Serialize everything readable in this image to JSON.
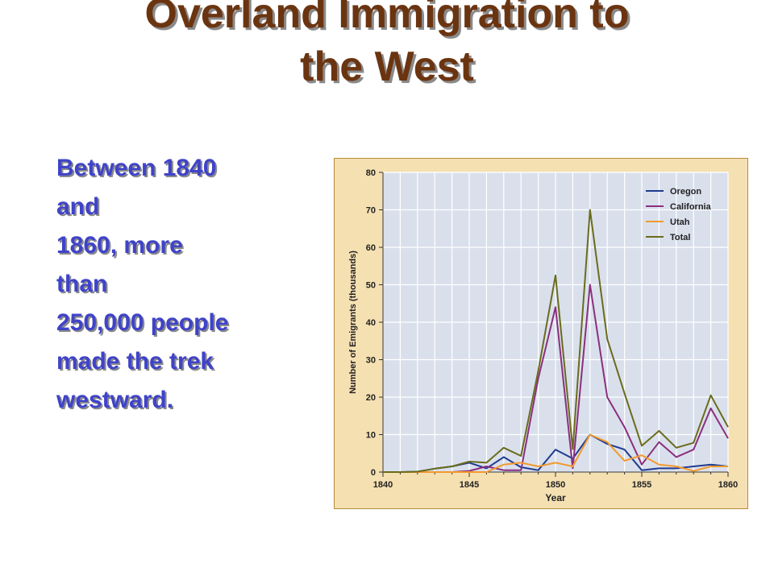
{
  "title": {
    "line1": "Overland Immigration to",
    "line2": "the West"
  },
  "body": {
    "lines": [
      "Between 1840",
      "and",
      "1860, more",
      "than",
      "250,000 people",
      "made the trek",
      "westward."
    ]
  },
  "colors": {
    "title": "#6b3410",
    "body_text": "#3f43c9",
    "panel_background": "#f5e0b2",
    "plot_background": "#d9e0ec",
    "oregon": "#1f3b8f",
    "california": "#8b2f7e",
    "utah": "#f39a2e",
    "total": "#6b6b1c"
  },
  "chart_data": {
    "type": "line",
    "xlabel": "Year",
    "ylabel": "Number of Emigrants (thousands)",
    "xlim": [
      1840,
      1860
    ],
    "ylim": [
      0,
      80
    ],
    "x_ticks": [
      1840,
      1845,
      1850,
      1855,
      1860
    ],
    "y_ticks": [
      0,
      10,
      20,
      30,
      40,
      50,
      60,
      70,
      80
    ],
    "grid": true,
    "legend_position": "top-right",
    "x": [
      1840,
      1841,
      1842,
      1843,
      1844,
      1845,
      1846,
      1847,
      1848,
      1849,
      1850,
      1851,
      1852,
      1853,
      1854,
      1855,
      1856,
      1857,
      1858,
      1859,
      1860
    ],
    "series": [
      {
        "name": "Oregon",
        "color": "#1f3b8f",
        "values": [
          0,
          0,
          0.1,
          0.9,
          1.5,
          2.5,
          1.0,
          4.0,
          1.3,
          0.5,
          6.0,
          3.6,
          10.0,
          7.5,
          6.0,
          0.5,
          1.0,
          1.0,
          1.5,
          2.0,
          1.5
        ]
      },
      {
        "name": "California",
        "color": "#8b2f7e",
        "values": [
          0,
          0,
          0,
          0,
          0,
          0.3,
          1.5,
          0.5,
          0.5,
          25.0,
          44.0,
          1.0,
          50.0,
          20.0,
          12.0,
          2.0,
          8.0,
          4.0,
          6.0,
          17.0,
          9.0
        ]
      },
      {
        "name": "Utah",
        "color": "#f39a2e",
        "values": [
          0,
          0,
          0,
          0,
          0,
          0,
          0,
          2.0,
          2.5,
          1.5,
          2.5,
          1.5,
          10.0,
          8.0,
          3.0,
          4.5,
          2.0,
          1.5,
          0.3,
          1.5,
          1.5
        ]
      },
      {
        "name": "Total",
        "color": "#6b6b1c",
        "values": [
          0,
          0,
          0.1,
          0.9,
          1.5,
          2.8,
          2.5,
          6.5,
          4.3,
          27.0,
          52.5,
          6.1,
          70.0,
          35.5,
          21.0,
          7.0,
          11.0,
          6.5,
          7.8,
          20.5,
          12.0
        ]
      }
    ]
  }
}
